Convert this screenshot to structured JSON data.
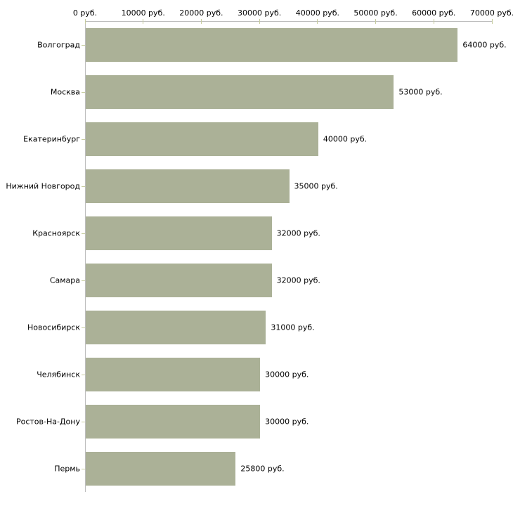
{
  "chart_data": {
    "type": "bar",
    "orientation": "horizontal",
    "title": "",
    "xlabel": "",
    "ylabel": "",
    "xlim": [
      0,
      70000
    ],
    "grid": false,
    "legend": "none",
    "x_tick_values": [
      0,
      10000,
      20000,
      30000,
      40000,
      50000,
      60000,
      70000
    ],
    "x_tick_labels": [
      "0 руб.",
      "10000 руб.",
      "20000 руб.",
      "30000 руб.",
      "40000 руб.",
      "50000 руб.",
      "60000 руб.",
      "70000 руб."
    ],
    "categories": [
      "Волгоград",
      "Москва",
      "Екатеринбург",
      "Нижний Новгород",
      "Красноярск",
      "Самара",
      "Новосибирск",
      "Челябинск",
      "Ростов-На-Дону",
      "Пермь"
    ],
    "values": [
      64000,
      53000,
      40000,
      35000,
      32000,
      32000,
      31000,
      30000,
      30000,
      25800
    ],
    "value_labels": [
      "64000 руб.",
      "53000 руб.",
      "40000 руб.",
      "35000 руб.",
      "32000 руб.",
      "32000 руб.",
      "31000 руб.",
      "30000 руб.",
      "30000 руб.",
      "25800 руб."
    ],
    "colors": {
      "bar_fill": "#abb197",
      "axis_line": "#bdbdbd",
      "tick_mark": "#c6cc9e",
      "text": "#000000",
      "background": "#ffffff"
    }
  }
}
